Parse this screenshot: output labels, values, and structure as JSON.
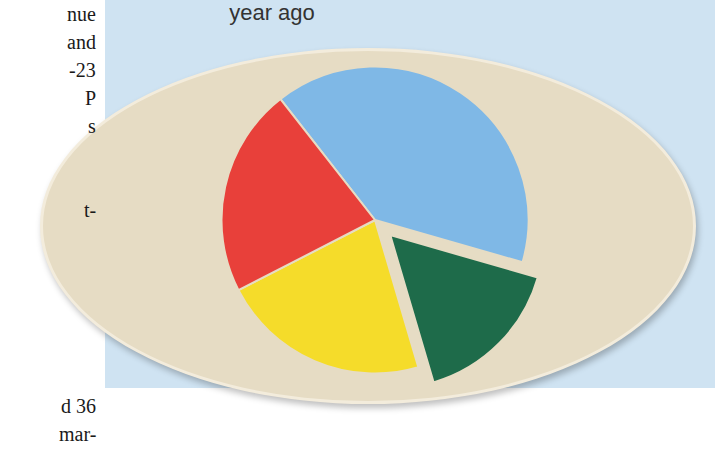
{
  "chart_data": {
    "type": "pie",
    "title": "year ago",
    "values": [
      40,
      16,
      22,
      22
    ],
    "colors": [
      "#7fb8e6",
      "#1e6b4a",
      "#f5dc2a",
      "#e8403a"
    ],
    "data_labels": false,
    "annotations": [
      "nue",
      "and",
      "-23",
      "P",
      "s",
      "t-",
      "d 36",
      "mar-"
    ]
  }
}
